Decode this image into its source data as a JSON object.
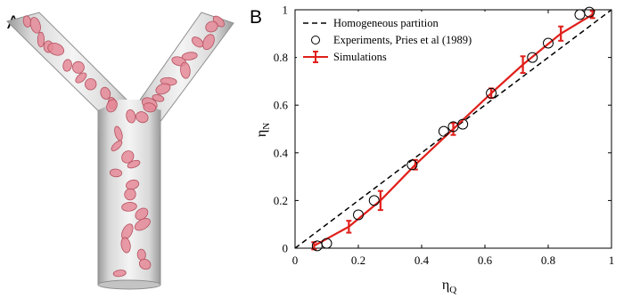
{
  "panels": {
    "a_label": "A",
    "b_label": "B"
  },
  "colors": {
    "simulation": "#e0201b",
    "diagonal": "#000000",
    "experiment_marker": "#000000",
    "vessel": "#c8c8c8",
    "cell_fill": "#e58a98",
    "cell_edge": "#b4505f"
  },
  "illustration": {
    "subject": "red blood cells flowing through a Y-shaped bifurcating vessel"
  },
  "chart_data": {
    "type": "line",
    "title": "",
    "xlabel": {
      "main": "η",
      "sub": "Q"
    },
    "ylabel": {
      "main": "η",
      "sub": "N"
    },
    "xlim": [
      0,
      1
    ],
    "ylim": [
      0,
      1
    ],
    "xticks": [
      "0",
      "0.2",
      "0.4",
      "0.6",
      "0.8",
      "1"
    ],
    "yticks": [
      "0",
      "0.2",
      "0.4",
      "0.6",
      "0.8",
      "1"
    ],
    "grid": false,
    "legend_position": "top-left",
    "series": [
      {
        "name": "Homogeneous partition",
        "style": "dashed-line",
        "x": [
          0,
          1
        ],
        "y": [
          0,
          1
        ]
      },
      {
        "name": "Experiments, Pries et al (1989)",
        "style": "open-circle-markers",
        "x": [
          0.07,
          0.1,
          0.2,
          0.25,
          0.37,
          0.47,
          0.5,
          0.53,
          0.62,
          0.75,
          0.8,
          0.9,
          0.93
        ],
        "y": [
          0.01,
          0.02,
          0.14,
          0.2,
          0.35,
          0.49,
          0.51,
          0.52,
          0.65,
          0.8,
          0.86,
          0.98,
          0.99
        ]
      },
      {
        "name": "Simulations",
        "style": "line-with-errorbars",
        "x": [
          0.06,
          0.17,
          0.27,
          0.38,
          0.5,
          0.62,
          0.72,
          0.84,
          0.94
        ],
        "y": [
          0.01,
          0.09,
          0.2,
          0.35,
          0.5,
          0.65,
          0.77,
          0.9,
          0.98
        ],
        "err": [
          0.015,
          0.025,
          0.04,
          0.02,
          0.025,
          0.02,
          0.035,
          0.03,
          0.015
        ]
      }
    ]
  }
}
